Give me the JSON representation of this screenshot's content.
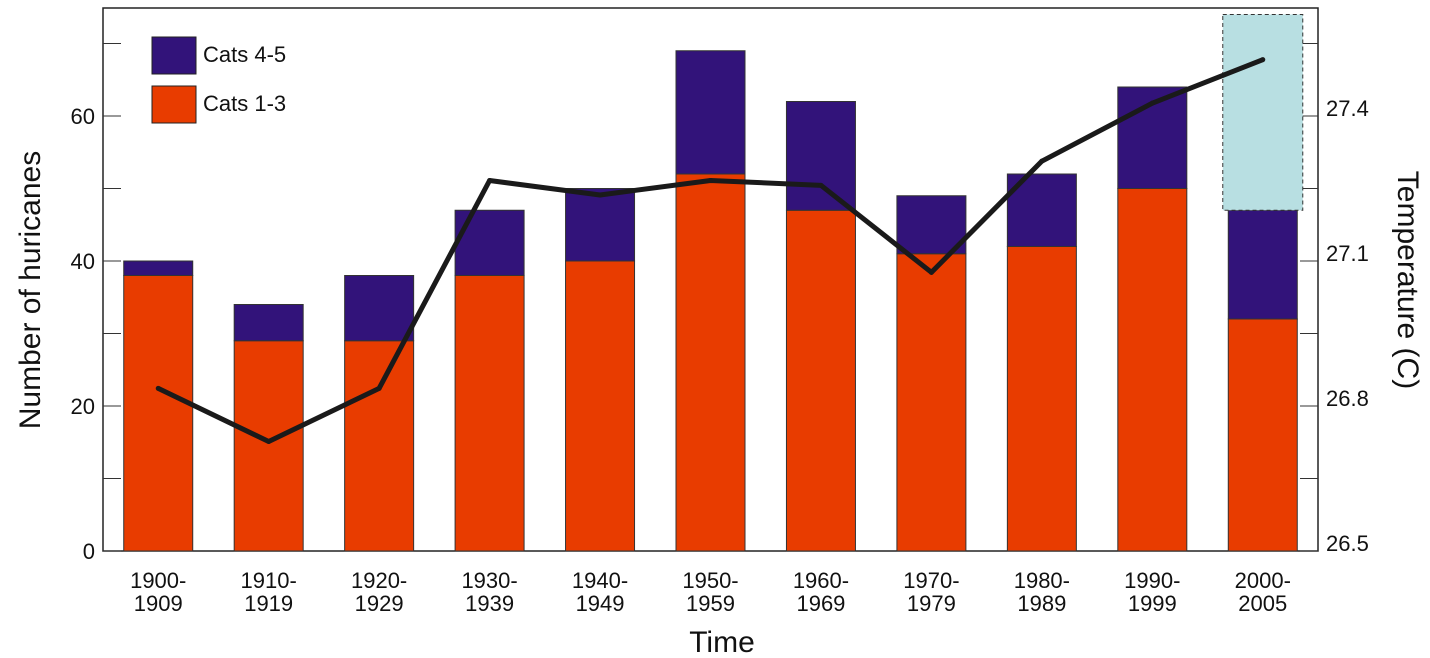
{
  "chart_data": {
    "type": "bar",
    "stacked": true,
    "categories": [
      "1900-1909",
      "1910-1919",
      "1920-1929",
      "1930-1939",
      "1940-1949",
      "1950-1959",
      "1960-1969",
      "1970-1979",
      "1980-1989",
      "1990-1999",
      "2000-2005"
    ],
    "category_labels": [
      [
        "1900-",
        "1909"
      ],
      [
        "1910-",
        "1919"
      ],
      [
        "1920-",
        "1929"
      ],
      [
        "1930-",
        "1939"
      ],
      [
        "1940-",
        "1949"
      ],
      [
        "1950-",
        "1959"
      ],
      [
        "1960-",
        "1969"
      ],
      [
        "1970-",
        "1979"
      ],
      [
        "1980-",
        "1989"
      ],
      [
        "1990-",
        "1999"
      ],
      [
        "2000-",
        "2005"
      ]
    ],
    "series": [
      {
        "name": "Cats 1-3",
        "color": "#e83c00",
        "values": [
          38,
          29,
          29,
          38,
          40,
          52,
          47,
          41,
          42,
          50,
          32
        ]
      },
      {
        "name": "Cats 4-5",
        "color": "#32137a",
        "values": [
          2,
          5,
          9,
          9,
          10,
          17,
          15,
          8,
          10,
          14,
          15
        ]
      }
    ],
    "projection": {
      "category": "2000-2005",
      "from": 47,
      "to": 74,
      "color": "#b8dfe2",
      "dashed_outline": true
    },
    "temperature": {
      "color": "#1a1a1a",
      "values": [
        26.82,
        26.71,
        26.82,
        27.25,
        27.22,
        27.25,
        27.24,
        27.06,
        27.29,
        27.41,
        27.5
      ]
    },
    "xlabel": "Time",
    "ylabel": "Number of huricanes",
    "y2label": "Temperature (C)",
    "ylim": [
      0,
      75
    ],
    "yticks": [
      0,
      20,
      40,
      60
    ],
    "y2lim": [
      26.5,
      27.55
    ],
    "y2ticks": [
      "26.5",
      "26.8",
      "27.1",
      "27.4"
    ],
    "legend_position": "top-left",
    "legend": [
      "Cats 4-5",
      "Cats 1-3"
    ]
  }
}
